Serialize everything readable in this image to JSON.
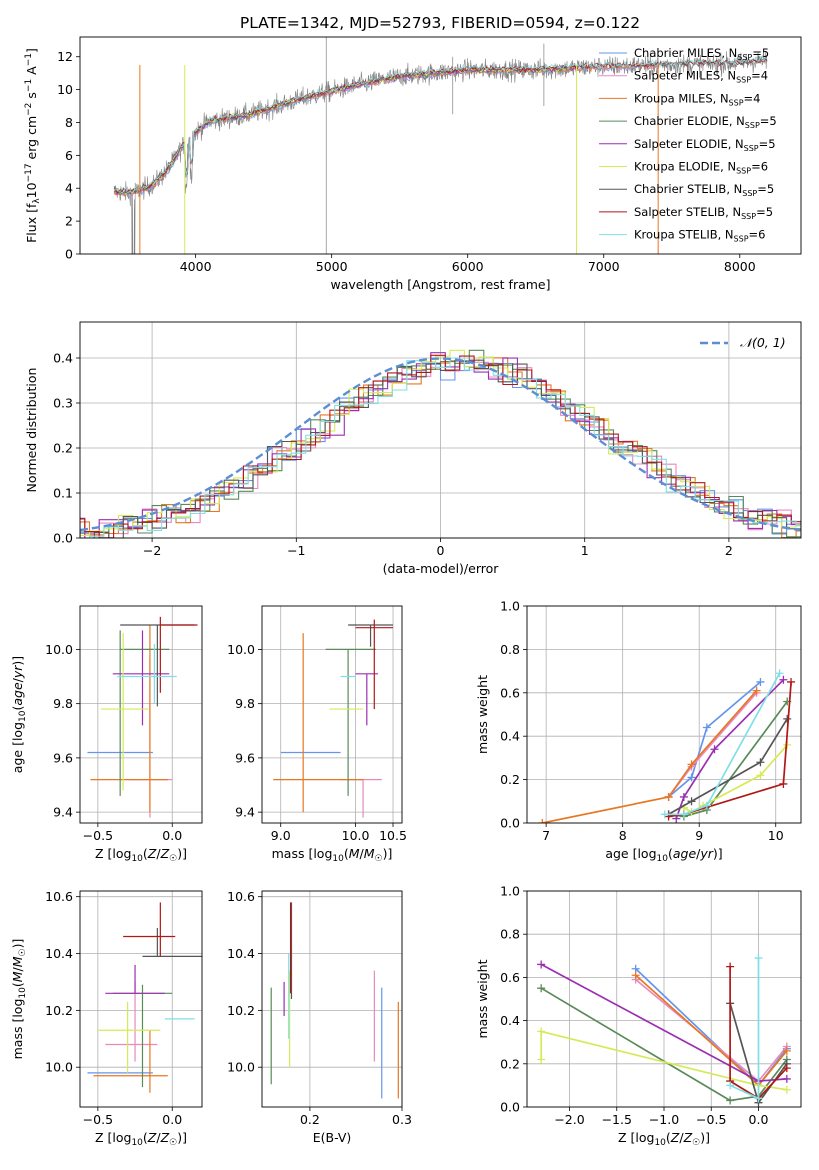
{
  "title": "PLATE=1342, MJD=52793, FIBERID=0594, z=0.122",
  "colors": {
    "chabrier_miles": "#6495ed",
    "salpeter_miles": "#e889c0",
    "kroupa_miles": "#e87722",
    "chabrier_elodie": "#5a8a5a",
    "salpeter_elodie": "#9b2fb2",
    "kroupa_elodie": "#d6ea55",
    "chabrier_stelib": "#555555",
    "salpeter_stelib": "#b01818",
    "kroupa_stelib": "#80dfe6",
    "data": "#808080"
  },
  "chart_data": [
    {
      "id": "spectrum",
      "type": "line",
      "xlabel": "wavelength [Angstrom, rest frame]",
      "ylabel": "Flux [f_λ10^-17 erg cm^-2 s^-1 A^-1]",
      "xlim": [
        3150,
        8450
      ],
      "ylim": [
        0,
        13.2
      ],
      "xticks": [
        4000,
        5000,
        6000,
        7000,
        8000
      ],
      "yticks": [
        0,
        2,
        4,
        6,
        8,
        10,
        12
      ],
      "grid": false,
      "legend_position": "top-right",
      "legend": [
        {
          "label": "Chabrier MILES, N",
          "sub": "SSP",
          "eq": "=5",
          "color_key": "chabrier_miles"
        },
        {
          "label": "Salpeter MILES, N",
          "sub": "SSP",
          "eq": "=4",
          "color_key": "salpeter_miles"
        },
        {
          "label": "Kroupa MILES, N",
          "sub": "SSP",
          "eq": "=4",
          "color_key": "kroupa_miles"
        },
        {
          "label": "Chabrier ELODIE, N",
          "sub": "SSP",
          "eq": "=5",
          "color_key": "chabrier_elodie"
        },
        {
          "label": "Salpeter ELODIE, N",
          "sub": "SSP",
          "eq": "=5",
          "color_key": "salpeter_elodie"
        },
        {
          "label": "Kroupa ELODIE, N",
          "sub": "SSP",
          "eq": "=6",
          "color_key": "kroupa_elodie"
        },
        {
          "label": "Chabrier STELIB, N",
          "sub": "SSP",
          "eq": "=5",
          "color_key": "chabrier_stelib"
        },
        {
          "label": "Salpeter STELIB, N",
          "sub": "SSP",
          "eq": "=5",
          "color_key": "salpeter_stelib"
        },
        {
          "label": "Kroupa STELIB, N",
          "sub": "SSP",
          "eq": "=6",
          "color_key": "kroupa_stelib"
        }
      ],
      "continuum_x": [
        3400,
        3500,
        3600,
        3700,
        3800,
        3900,
        4000,
        4100,
        4200,
        4400,
        4600,
        4800,
        5000,
        5200,
        5500,
        6000,
        6500,
        7000,
        7500,
        8000,
        8200
      ],
      "continuum_y": [
        3.8,
        3.7,
        3.9,
        4.3,
        5.2,
        6.5,
        7.4,
        8.1,
        8.2,
        8.5,
        9.0,
        9.5,
        9.9,
        10.3,
        10.8,
        11.2,
        11.2,
        11.4,
        11.5,
        11.6,
        11.8
      ]
    },
    {
      "id": "residuals",
      "type": "histogram",
      "xlabel": "(data-model)/error",
      "ylabel": "Normed distribution",
      "xlim": [
        -2.5,
        2.5
      ],
      "ylim": [
        0,
        0.48
      ],
      "xticks": [
        -2,
        -1,
        0,
        1,
        2
      ],
      "yticks": [
        0.0,
        0.1,
        0.2,
        0.3,
        0.4
      ],
      "grid": true,
      "legend_position": "top-right",
      "normal_label": "𝒩(0, 1)",
      "normal_color": "#5b8ed6"
    },
    {
      "id": "z_age",
      "type": "errorbar",
      "xlabel": "Z [log₁₀(Z/Z☉)]",
      "ylabel": "age  [log₁₀(age/yr)]",
      "xlim": [
        -0.62,
        0.2
      ],
      "ylim": [
        9.36,
        10.16
      ],
      "xticks": [
        -0.5,
        0.0
      ],
      "yticks": [
        9.4,
        9.6,
        9.8,
        10.0
      ],
      "grid": true,
      "points": [
        {
          "color_key": "chabrier_miles",
          "x": -0.3,
          "xerr": [
            0.27,
            0.17
          ],
          "y": 9.62,
          "yerr": [
            0.0,
            0.0
          ]
        },
        {
          "color_key": "salpeter_miles",
          "x": -0.15,
          "xerr": [
            0.14,
            0.15
          ],
          "y": 9.52,
          "yerr": [
            0.14,
            0.45
          ]
        },
        {
          "color_key": "kroupa_miles",
          "x": -0.15,
          "xerr": [
            0.4,
            0.12
          ],
          "y": 9.52,
          "yerr": [
            0.12,
            0.57
          ]
        },
        {
          "color_key": "chabrier_elodie",
          "x": -0.35,
          "xerr": [
            0.0,
            0.33
          ],
          "y": 10.0,
          "yerr": [
            0.54,
            0.07
          ]
        },
        {
          "color_key": "salpeter_elodie",
          "x": -0.2,
          "xerr": [
            0.2,
            0.18
          ],
          "y": 9.91,
          "yerr": [
            0.19,
            0.16
          ]
        },
        {
          "color_key": "kroupa_elodie",
          "x": -0.33,
          "xerr": [
            0.15,
            0.17
          ],
          "y": 9.78,
          "yerr": [
            0.3,
            0.28
          ]
        },
        {
          "color_key": "chabrier_stelib",
          "x": -0.1,
          "xerr": [
            0.25,
            0.25
          ],
          "y": 10.09,
          "yerr": [
            0.3,
            0.0
          ]
        },
        {
          "color_key": "salpeter_stelib",
          "x": -0.08,
          "xerr": [
            0.0,
            0.25
          ],
          "y": 10.09,
          "yerr": [
            0.25,
            0.03
          ]
        },
        {
          "color_key": "kroupa_stelib",
          "x": -0.12,
          "xerr": [
            0.25,
            0.15
          ],
          "y": 9.9,
          "yerr": [
            0.1,
            0.12
          ]
        }
      ]
    },
    {
      "id": "mass_age",
      "type": "errorbar",
      "xlabel": "mass [log₁₀(M/M☉)]",
      "ylabel": "",
      "xlim": [
        8.75,
        10.62
      ],
      "ylim": [
        9.36,
        10.16
      ],
      "xticks": [
        9,
        10,
        10.5
      ],
      "yticks": [
        9.4,
        9.6,
        9.8,
        10.0
      ],
      "grid": true,
      "points": [
        {
          "color_key": "chabrier_miles",
          "x": 9.5,
          "xerr": [
            0.5,
            0.3
          ],
          "y": 9.62,
          "yerr": [
            0.0,
            0.0
          ]
        },
        {
          "color_key": "salpeter_miles",
          "x": 10.1,
          "xerr": [
            0.3,
            0.25
          ],
          "y": 9.52,
          "yerr": [
            0.14,
            0.0
          ]
        },
        {
          "color_key": "kroupa_miles",
          "x": 9.3,
          "xerr": [
            0.4,
            0.8
          ],
          "y": 9.52,
          "yerr": [
            0.12,
            0.54
          ]
        },
        {
          "color_key": "chabrier_elodie",
          "x": 9.9,
          "xerr": [
            0.3,
            0.37
          ],
          "y": 10.0,
          "yerr": [
            0.54,
            0.0
          ]
        },
        {
          "color_key": "salpeter_elodie",
          "x": 10.15,
          "xerr": [
            0.15,
            0.15
          ],
          "y": 9.91,
          "yerr": [
            0.19,
            0.0
          ]
        },
        {
          "color_key": "kroupa_elodie",
          "x": 9.9,
          "xerr": [
            0.25,
            0.2
          ],
          "y": 9.78,
          "yerr": [
            0.0,
            0.0
          ]
        },
        {
          "color_key": "chabrier_stelib",
          "x": 10.2,
          "xerr": [
            0.3,
            0.3
          ],
          "y": 10.09,
          "yerr": [
            0.08,
            0.0
          ]
        },
        {
          "color_key": "salpeter_stelib",
          "x": 10.25,
          "xerr": [
            0.25,
            0.25
          ],
          "y": 10.08,
          "yerr": [
            0.3,
            0.03
          ]
        },
        {
          "color_key": "kroupa_stelib",
          "x": 9.8,
          "xerr": [
            0.0,
            0.2
          ],
          "y": 9.9,
          "yerr": [
            0.0,
            0.0
          ]
        }
      ]
    },
    {
      "id": "age_weight",
      "type": "line",
      "xlabel": "age  [log₁₀(age/yr)]",
      "ylabel": "mass weight",
      "xlim": [
        6.75,
        10.33
      ],
      "ylim": [
        0,
        1.0
      ],
      "xticks": [
        7,
        8,
        9,
        10
      ],
      "yticks": [
        0.0,
        0.2,
        0.4,
        0.6,
        0.8,
        1.0
      ],
      "grid": true,
      "series": [
        {
          "color_key": "chabrier_miles",
          "x": [
            8.6,
            8.9,
            9.1,
            9.8
          ],
          "y": [
            0.12,
            0.21,
            0.44,
            0.65
          ]
        },
        {
          "color_key": "salpeter_miles",
          "x": [
            8.6,
            8.9,
            9.75
          ],
          "y": [
            0.12,
            0.26,
            0.6
          ]
        },
        {
          "color_key": "kroupa_miles",
          "x": [
            6.95,
            8.6,
            8.9,
            9.75
          ],
          "y": [
            0.0,
            0.12,
            0.27,
            0.61
          ]
        },
        {
          "color_key": "chabrier_elodie",
          "x": [
            8.6,
            8.8,
            9.1,
            10.15
          ],
          "y": [
            0.04,
            0.03,
            0.06,
            0.56
          ]
        },
        {
          "color_key": "salpeter_elodie",
          "x": [
            8.7,
            8.8,
            9.2,
            10.1
          ],
          "y": [
            0.02,
            0.12,
            0.34,
            0.66
          ]
        },
        {
          "color_key": "kroupa_elodie",
          "x": [
            8.8,
            8.9,
            9.05,
            9.8,
            10.15
          ],
          "y": [
            0.07,
            0.05,
            0.08,
            0.22,
            0.36
          ]
        },
        {
          "color_key": "chabrier_stelib",
          "x": [
            8.6,
            8.9,
            9.8,
            10.15
          ],
          "y": [
            0.04,
            0.1,
            0.28,
            0.48
          ]
        },
        {
          "color_key": "salpeter_stelib",
          "x": [
            8.6,
            8.8,
            10.1,
            10.2
          ],
          "y": [
            0.03,
            0.04,
            0.18,
            0.65
          ]
        },
        {
          "color_key": "kroupa_stelib",
          "x": [
            8.55,
            8.8,
            9.1,
            10.05
          ],
          "y": [
            0.04,
            0.04,
            0.08,
            0.69
          ]
        }
      ]
    },
    {
      "id": "z_mass",
      "type": "errorbar",
      "xlabel": "Z [log₁₀(Z/Z☉)]",
      "ylabel": "mass [log₁₀(M/M☉)]",
      "xlim": [
        -0.62,
        0.2
      ],
      "ylim": [
        9.86,
        10.62
      ],
      "xticks": [
        -0.5,
        0.0
      ],
      "yticks": [
        10.0,
        10.2,
        10.4,
        10.6
      ],
      "grid": true,
      "points": [
        {
          "color_key": "chabrier_miles",
          "x": -0.3,
          "xerr": [
            0.27,
            0.17
          ],
          "y": 9.98,
          "yerr": [
            0.0,
            0.0
          ]
        },
        {
          "color_key": "salpeter_miles",
          "x": -0.25,
          "xerr": [
            0.2,
            0.15
          ],
          "y": 10.08,
          "yerr": [
            0.06,
            0.22
          ]
        },
        {
          "color_key": "kroupa_miles",
          "x": -0.15,
          "xerr": [
            0.38,
            0.12
          ],
          "y": 9.97,
          "yerr": [
            0.06,
            0.16
          ]
        },
        {
          "color_key": "chabrier_elodie",
          "x": -0.2,
          "xerr": [
            0.2,
            0.2
          ],
          "y": 10.26,
          "yerr": [
            0.33,
            0.03
          ]
        },
        {
          "color_key": "salpeter_elodie",
          "x": -0.25,
          "xerr": [
            0.2,
            0.2
          ],
          "y": 10.26,
          "yerr": [
            0.0,
            0.1
          ]
        },
        {
          "color_key": "kroupa_elodie",
          "x": -0.3,
          "xerr": [
            0.2,
            0.22
          ],
          "y": 10.13,
          "yerr": [
            0.15,
            0.1
          ]
        },
        {
          "color_key": "chabrier_stelib",
          "x": -0.1,
          "xerr": [
            0.1,
            0.3
          ],
          "y": 10.39,
          "yerr": [
            0.0,
            0.1
          ]
        },
        {
          "color_key": "salpeter_stelib",
          "x": -0.08,
          "xerr": [
            0.25,
            0.1
          ],
          "y": 10.46,
          "yerr": [
            0.07,
            0.12
          ]
        },
        {
          "color_key": "kroupa_stelib",
          "x": 0.05,
          "xerr": [
            0.1,
            0.1
          ],
          "y": 10.17,
          "yerr": [
            0.0,
            0.0
          ]
        }
      ]
    },
    {
      "id": "ebv_mass",
      "type": "errorbar",
      "xlabel": "E(B-V)",
      "ylabel": "",
      "xlim": [
        0.148,
        0.3
      ],
      "ylim": [
        9.86,
        10.62
      ],
      "xticks": [
        0.2,
        0.3
      ],
      "yticks": [
        10.0,
        10.2,
        10.4,
        10.6
      ],
      "grid": true,
      "points": [
        {
          "color_key": "chabrier_miles",
          "x": 0.278,
          "xerr": [
            0,
            0
          ],
          "y": 10.08,
          "yerr": [
            0.19,
            0.2
          ]
        },
        {
          "color_key": "salpeter_miles",
          "x": 0.27,
          "xerr": [
            0,
            0
          ],
          "y": 10.18,
          "yerr": [
            0.16,
            0.16
          ]
        },
        {
          "color_key": "kroupa_miles",
          "x": 0.296,
          "xerr": [
            0,
            0
          ],
          "y": 10.06,
          "yerr": [
            0.17,
            0.17
          ]
        },
        {
          "color_key": "chabrier_elodie",
          "x": 0.158,
          "xerr": [
            0,
            0
          ],
          "y": 10.11,
          "yerr": [
            0.17,
            0.17
          ]
        },
        {
          "color_key": "salpeter_elodie",
          "x": 0.172,
          "xerr": [
            0,
            0
          ],
          "y": 10.24,
          "yerr": [
            0.06,
            0.06
          ]
        },
        {
          "color_key": "kroupa_elodie",
          "x": 0.178,
          "xerr": [
            0,
            0
          ],
          "y": 10.17,
          "yerr": [
            0.17,
            0.17
          ]
        },
        {
          "color_key": "chabrier_stelib",
          "x": 0.18,
          "xerr": [
            0,
            0
          ],
          "y": 10.41,
          "yerr": [
            0.17,
            0.17
          ]
        },
        {
          "color_key": "salpeter_stelib",
          "x": 0.179,
          "xerr": [
            0,
            0
          ],
          "y": 10.42,
          "yerr": [
            0.16,
            0.16
          ]
        },
        {
          "color_key": "kroupa_stelib",
          "x": 0.177,
          "xerr": [
            0,
            0
          ],
          "y": 10.25,
          "yerr": [
            0.15,
            0.15
          ]
        }
      ]
    },
    {
      "id": "z_weight",
      "type": "line",
      "xlabel": "Z [log₁₀(Z/Z☉)]",
      "ylabel": "mass weight",
      "xlim": [
        -2.45,
        0.45
      ],
      "ylim": [
        0,
        1.0
      ],
      "xticks": [
        -2.0,
        -1.5,
        -1.0,
        -0.5,
        0.0
      ],
      "yticks": [
        0.0,
        0.2,
        0.4,
        0.6,
        0.8,
        1.0
      ],
      "grid": true,
      "series": [
        {
          "color_key": "chabrier_miles",
          "x": [
            -1.3,
            0.0,
            0.3
          ],
          "y": [
            0.64,
            0.1,
            0.27
          ]
        },
        {
          "color_key": "salpeter_miles",
          "x": [
            -1.3,
            0.0,
            0.3
          ],
          "y": [
            0.59,
            0.12,
            0.28
          ]
        },
        {
          "color_key": "kroupa_miles",
          "x": [
            -1.3,
            0.0,
            0.3
          ],
          "y": [
            0.61,
            0.1,
            0.26
          ]
        },
        {
          "color_key": "chabrier_elodie",
          "x": [
            -2.3,
            -0.3,
            0.0,
            0.3
          ],
          "y": [
            0.55,
            0.03,
            0.05,
            0.22
          ]
        },
        {
          "color_key": "salpeter_elodie",
          "x": [
            -2.3,
            0.0,
            0.3
          ],
          "y": [
            0.66,
            0.12,
            0.13
          ]
        },
        {
          "color_key": "kroupa_elodie",
          "x": [
            -2.3,
            -2.3,
            0.0,
            0.3
          ],
          "y": [
            0.22,
            0.35,
            0.1,
            0.08
          ]
        },
        {
          "color_key": "chabrier_stelib",
          "x": [
            -0.3,
            0.0,
            0.3
          ],
          "y": [
            0.48,
            0.02,
            0.2
          ]
        },
        {
          "color_key": "salpeter_stelib",
          "x": [
            -0.3,
            -0.3,
            0.0,
            0.3
          ],
          "y": [
            0.65,
            0.12,
            0.04,
            0.18
          ]
        },
        {
          "color_key": "kroupa_stelib",
          "x": [
            -0.3,
            0.0,
            0.0
          ],
          "y": [
            0.1,
            0.04,
            0.69
          ]
        }
      ]
    }
  ]
}
